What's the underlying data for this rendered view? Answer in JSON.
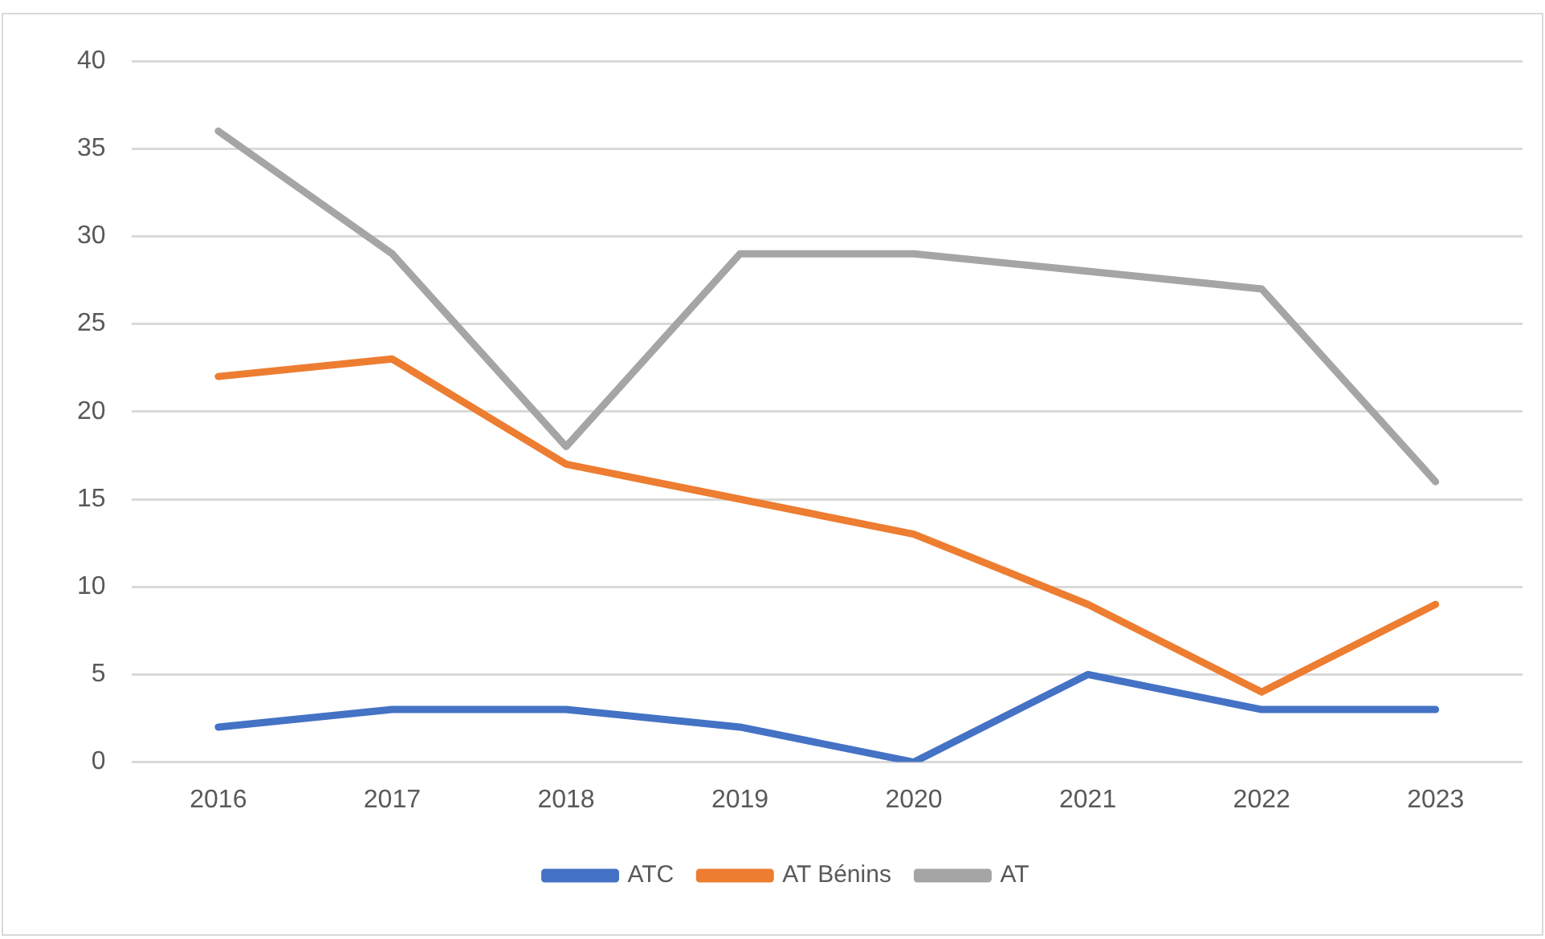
{
  "chart_data": {
    "type": "line",
    "categories": [
      "2016",
      "2017",
      "2018",
      "2019",
      "2020",
      "2021",
      "2022",
      "2023"
    ],
    "series": [
      {
        "name": "ATC",
        "color": "#4472c4",
        "values": [
          2,
          3,
          3,
          2,
          0,
          5,
          3,
          3
        ]
      },
      {
        "name": "AT Bénins",
        "color": "#ed7d31",
        "values": [
          22,
          23,
          17,
          15,
          13,
          9,
          4,
          9
        ]
      },
      {
        "name": "AT",
        "color": "#a5a5a5",
        "values": [
          36,
          29,
          18,
          29,
          29,
          28,
          27,
          16
        ]
      }
    ],
    "ylim": [
      0,
      40
    ],
    "yticks": [
      0,
      5,
      10,
      15,
      20,
      25,
      30,
      35,
      40
    ],
    "grid": "y",
    "legend": "bottom",
    "marker": "none",
    "line_style": "solid"
  }
}
